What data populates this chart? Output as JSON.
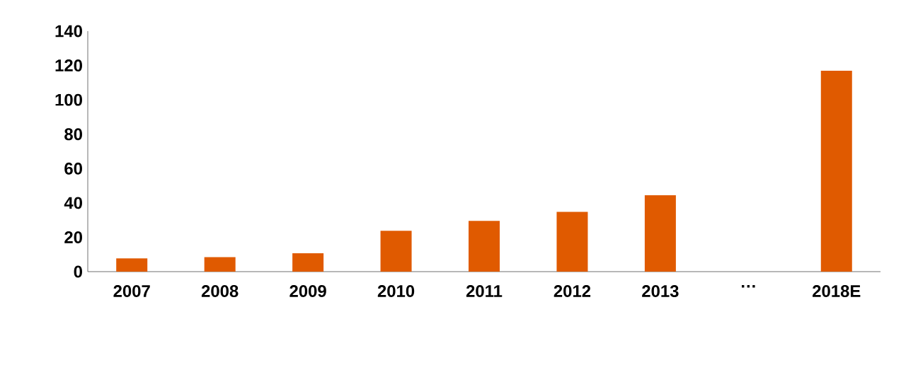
{
  "chart_data": {
    "type": "bar",
    "categories": [
      "2007",
      "2008",
      "2009",
      "2010",
      "2011",
      "2012",
      "2013",
      "…",
      "2018E"
    ],
    "values": [
      7.7,
      8.4,
      10.7,
      23.8,
      29.5,
      34.8,
      44.5,
      null,
      116.9
    ],
    "color": "#e05a00",
    "ylim": [
      0,
      140
    ],
    "yticks": [
      0,
      20,
      40,
      60,
      80,
      100,
      120,
      140
    ]
  }
}
